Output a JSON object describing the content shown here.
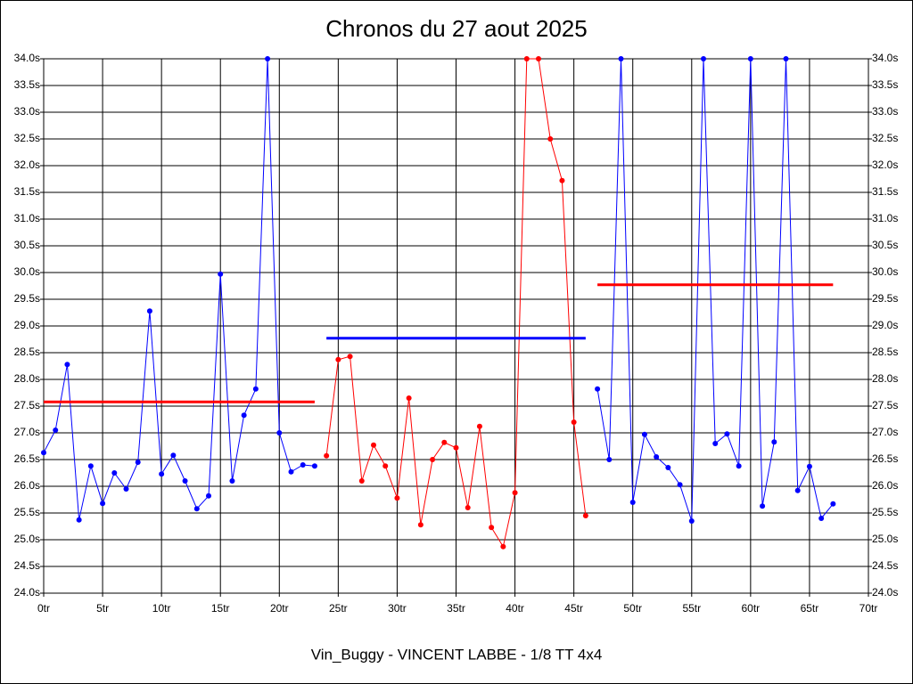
{
  "chart_data": {
    "type": "line",
    "title": "Chronos du 27 aout 2025",
    "xlabel": "Vin_Buggy - VINCENT LABBE - 1/8 TT 4x4",
    "xlim": [
      0,
      70
    ],
    "xticks": [
      {
        "value": 0,
        "label": "0tr"
      },
      {
        "value": 5,
        "label": "5tr"
      },
      {
        "value": 10,
        "label": "10tr"
      },
      {
        "value": 15,
        "label": "15tr"
      },
      {
        "value": 20,
        "label": "20tr"
      },
      {
        "value": 25,
        "label": "25tr"
      },
      {
        "value": 30,
        "label": "30tr"
      },
      {
        "value": 35,
        "label": "35tr"
      },
      {
        "value": 40,
        "label": "40tr"
      },
      {
        "value": 45,
        "label": "45tr"
      },
      {
        "value": 50,
        "label": "50tr"
      },
      {
        "value": 55,
        "label": "55tr"
      },
      {
        "value": 60,
        "label": "60tr"
      },
      {
        "value": 65,
        "label": "65tr"
      },
      {
        "value": 70,
        "label": "70tr"
      }
    ],
    "ylim": [
      24,
      34
    ],
    "yticks": [
      {
        "value": 24,
        "label": "24.0s"
      },
      {
        "value": 24.5,
        "label": "24.5s"
      },
      {
        "value": 25,
        "label": "25.0s"
      },
      {
        "value": 25.5,
        "label": "25.5s"
      },
      {
        "value": 26,
        "label": "26.0s"
      },
      {
        "value": 26.5,
        "label": "26.5s"
      },
      {
        "value": 27,
        "label": "27.0s"
      },
      {
        "value": 27.5,
        "label": "27.5s"
      },
      {
        "value": 28,
        "label": "28.0s"
      },
      {
        "value": 28.5,
        "label": "28.5s"
      },
      {
        "value": 29,
        "label": "29.0s"
      },
      {
        "value": 29.5,
        "label": "29.5s"
      },
      {
        "value": 30,
        "label": "30.0s"
      },
      {
        "value": 30.5,
        "label": "30.5s"
      },
      {
        "value": 31,
        "label": "31.0s"
      },
      {
        "value": 31.5,
        "label": "31.5s"
      },
      {
        "value": 32,
        "label": "32.0s"
      },
      {
        "value": 32.5,
        "label": "32.5s"
      },
      {
        "value": 33,
        "label": "33.0s"
      },
      {
        "value": 33.5,
        "label": "33.5s"
      },
      {
        "value": 34,
        "label": "34.0s"
      }
    ],
    "grid": true,
    "series": [
      {
        "color": "#0000ff",
        "x": [
          0,
          1,
          2,
          3,
          4,
          5,
          6,
          7,
          8,
          9,
          10,
          11,
          12,
          13,
          14,
          15,
          16,
          17,
          18,
          19,
          20,
          21,
          22,
          23
        ],
        "values": [
          26.63,
          27.05,
          28.28,
          25.37,
          26.38,
          25.68,
          26.25,
          25.95,
          26.45,
          29.28,
          26.23,
          26.58,
          26.1,
          25.58,
          25.82,
          29.97,
          26.1,
          27.33,
          27.82,
          34,
          27.0,
          26.27,
          26.4,
          26.38
        ]
      },
      {
        "color": "#ff0000",
        "x": [
          24,
          25,
          26,
          27,
          28,
          29,
          30,
          31,
          32,
          33,
          34,
          35,
          36,
          37,
          38,
          39,
          40,
          41,
          42,
          43,
          44,
          45,
          46
        ],
        "values": [
          26.57,
          28.37,
          28.43,
          26.1,
          26.77,
          26.38,
          25.78,
          27.65,
          25.28,
          26.5,
          26.82,
          26.72,
          25.6,
          27.12,
          25.23,
          24.87,
          25.88,
          34,
          34,
          32.5,
          31.72,
          27.2,
          25.45
        ]
      },
      {
        "color": "#0000ff",
        "x": [
          47,
          48,
          49,
          50,
          51,
          52,
          53,
          54,
          55,
          56,
          57,
          58,
          59,
          60,
          61,
          62,
          63,
          64,
          65,
          66,
          67
        ],
        "values": [
          27.82,
          26.5,
          34,
          25.7,
          26.97,
          26.55,
          26.35,
          26.03,
          25.35,
          34,
          26.8,
          26.98,
          26.38,
          34,
          25.63,
          26.83,
          34,
          25.92,
          26.37,
          25.4,
          25.67
        ]
      }
    ],
    "averages": [
      {
        "color": "#ff0000",
        "x": [
          0,
          23
        ],
        "value": 27.58
      },
      {
        "color": "#0000ff",
        "x": [
          24,
          46
        ],
        "value": 28.77
      },
      {
        "color": "#ff0000",
        "x": [
          47,
          67
        ],
        "value": 29.77
      }
    ]
  }
}
